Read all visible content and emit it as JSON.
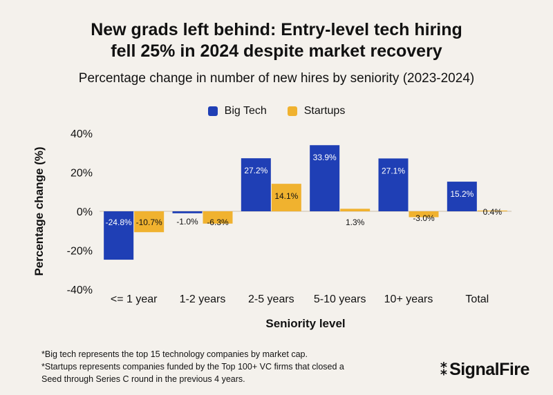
{
  "title_line1": "New grads left behind: Entry-level tech hiring",
  "title_line2": "fell 25% in 2024 despite market recovery",
  "subtitle": "Percentage change in number of new hires by seniority (2023-2024)",
  "footnote_1": "*Big tech represents the top 15 technology companies by market cap.",
  "footnote_2": "*Startups represents companies funded by the Top 100+ VC firms that closed a",
  "footnote_3": "Seed through Series C round in the previous 4 years.",
  "logo_text": "SignalFire",
  "colors": {
    "big_tech": "#1f3fb5",
    "startups": "#f0b22f",
    "background": "#f4f1ec"
  },
  "chart_data": {
    "type": "bar",
    "categories": [
      "<= 1 year",
      "1-2 years",
      "2-5 years",
      "5-10 years",
      "10+ years",
      "Total"
    ],
    "series": [
      {
        "name": "Big Tech",
        "values": [
          -24.8,
          -1.0,
          27.2,
          33.9,
          27.1,
          15.2
        ],
        "labels": [
          "-24.8%",
          "-1.0%",
          "27.2%",
          "33.9%",
          "27.1%",
          "15.2%"
        ]
      },
      {
        "name": "Startups",
        "values": [
          -10.7,
          -6.3,
          14.1,
          1.3,
          -3.0,
          0.4
        ],
        "labels": [
          "-10.7%",
          "-6.3%",
          "14.1%",
          "1.3%",
          "-3.0%",
          "0.4%"
        ]
      }
    ],
    "xlabel": "Seniority level",
    "ylabel": "Percentage change (%)",
    "ylim": [
      -40,
      40
    ],
    "yticks": [
      40,
      20,
      0,
      -20,
      -40
    ],
    "ytick_labels": [
      "40%",
      "20%",
      "0%",
      "-20%",
      "-40%"
    ],
    "grid": false,
    "legend_position": "top-center"
  }
}
